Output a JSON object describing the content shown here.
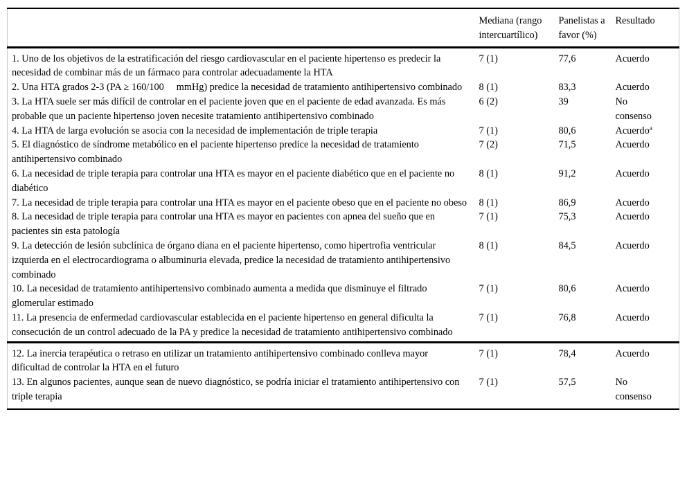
{
  "table": {
    "headers": {
      "statement": "",
      "median": "Mediana (rango intercuartílico)",
      "panelists": "Panelistas a favor (%)",
      "result": "Resultado"
    },
    "rules_color": "#000000",
    "side_border_color": "#c6c6c6",
    "rows": [
      {
        "section": 1,
        "statement": "1. Uno de los objetivos de la estratificación del riesgo cardiovascular en el paciente hipertenso es predecir la necesidad de combinar más de un fármaco para controlar adecuadamente la HTA",
        "median": "7 (1)",
        "panelists": "77,6",
        "result": "Acuerdo",
        "result_sup": ""
      },
      {
        "section": 1,
        "statement": "2. Una HTA grados 2-3 (PA ≥ 160/100     mmHg) predice la necesidad de tratamiento antihipertensivo combinado",
        "median": "8 (1)",
        "panelists": "83,3",
        "result": "Acuerdo",
        "result_sup": ""
      },
      {
        "section": 1,
        "statement": "3. La HTA suele ser más difícil de controlar en el paciente joven que en el paciente de edad avanzada. Es más probable que un paciente hipertenso joven necesite tratamiento antihipertensivo combinado",
        "median": "6 (2)",
        "panelists": "39",
        "result": "No consenso",
        "result_sup": ""
      },
      {
        "section": 1,
        "statement": "4. La HTA de larga evolución se asocia con la necesidad de implementación de triple terapia",
        "median": "7 (1)",
        "panelists": "80,6",
        "result": "Acuerdo",
        "result_sup": "a"
      },
      {
        "section": 1,
        "statement": "5. El diagnóstico de síndrome metabólico en el paciente hipertenso predice la necesidad de tratamiento antihipertensivo combinado",
        "median": "7 (2)",
        "panelists": "71,5",
        "result": "Acuerdo",
        "result_sup": ""
      },
      {
        "section": 1,
        "statement": "6. La necesidad de triple terapia para controlar una HTA es mayor en el paciente diabético que en el paciente no diabético",
        "median": "8 (1)",
        "panelists": "91,2",
        "result": "Acuerdo",
        "result_sup": ""
      },
      {
        "section": 1,
        "statement": "7. La necesidad de triple terapia para controlar una HTA es mayor en el paciente obeso que en el paciente no obeso",
        "median": "8 (1)",
        "panelists": "86,9",
        "result": "Acuerdo",
        "result_sup": ""
      },
      {
        "section": 1,
        "statement": "8. La necesidad de triple terapia para controlar una HTA es mayor en pacientes con apnea del sueño que en pacientes sin esta patología",
        "median": "7 (1)",
        "panelists": "75,3",
        "result": "Acuerdo",
        "result_sup": ""
      },
      {
        "section": 1,
        "statement": "9. La detección de lesión subclínica de órgano diana en el paciente hipertenso, como hipertrofia ventricular izquierda en el electrocardiograma o albuminuria elevada, predice la necesidad de tratamiento antihipertensivo combinado",
        "median": "8 (1)",
        "panelists": "84,5",
        "result": "Acuerdo",
        "result_sup": ""
      },
      {
        "section": 1,
        "statement": "10. La necesidad de tratamiento antihipertensivo combinado aumenta a medida que disminuye el filtrado glomerular estimado",
        "median": "7 (1)",
        "panelists": "80,6",
        "result": "Acuerdo",
        "result_sup": ""
      },
      {
        "section": 1,
        "statement": "11. La presencia de enfermedad cardiovascular establecida en el paciente hipertenso en general dificulta la consecución de un control adecuado de la PA y predice la necesidad de tratamiento antihipertensivo combinado",
        "median": "7 (1)",
        "panelists": "76,8",
        "result": "Acuerdo",
        "result_sup": ""
      },
      {
        "section": 2,
        "statement": "12. La inercia terapéutica o retraso en utilizar un tratamiento antihipertensivo combinado conlleva mayor dificultad de controlar la HTA en el futuro",
        "median": "7 (1)",
        "panelists": "78,4",
        "result": "Acuerdo",
        "result_sup": ""
      },
      {
        "section": 2,
        "statement": "13. En algunos pacientes, aunque sean de nuevo diagnóstico, se podría iniciar el tratamiento antihipertensivo con triple terapia",
        "median": "7 (1)",
        "panelists": "57,5",
        "result": "No consenso",
        "result_sup": ""
      }
    ]
  }
}
